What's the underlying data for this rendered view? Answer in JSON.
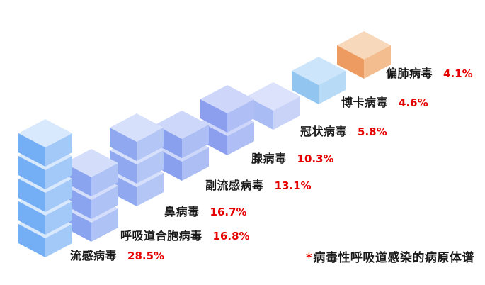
{
  "background": "#ffffff",
  "chart_data": {
    "type": "bar",
    "variant": "isometric-stacked-cubes",
    "title": "",
    "xlabel": "",
    "ylabel": "",
    "axes": "none",
    "legend": "none",
    "categories": [
      "流感病毒",
      "呼吸道合胞病毒",
      "鼻病毒",
      "副流感病毒",
      "腺病毒",
      "冠状病毒",
      "博卡病毒",
      "偏肺病毒"
    ],
    "values": [
      28.5,
      16.8,
      16.7,
      13.1,
      10.3,
      5.8,
      4.6,
      4.1
    ],
    "value_labels": [
      "28.5%",
      "16.8%",
      "16.7%",
      "13.1%",
      "10.3%",
      "5.8%",
      "4.6%",
      "4.1%"
    ],
    "cube_counts": [
      5,
      3,
      3,
      2,
      2,
      1,
      1,
      1
    ],
    "name_color": "#1a1a1a",
    "value_color": "#e60000",
    "stack_colors": [
      {
        "left": "#74aef5",
        "right": "#a3c9f9",
        "top": "#d8e9fd"
      },
      {
        "left": "#8ba4ef",
        "right": "#afc2f5",
        "top": "#d4ddfa"
      },
      {
        "left": "#90a8f0",
        "right": "#b4c6f6",
        "top": "#d7e0fb"
      },
      {
        "left": "#89a0ee",
        "right": "#acbef4",
        "top": "#cdd7f9"
      },
      {
        "left": "#8c9fef",
        "right": "#afbff5",
        "top": "#ced6f9"
      },
      {
        "left": "#a9bcf3",
        "right": "#c9d3f7",
        "top": "#dce2fb"
      },
      {
        "left": "#92c5f0",
        "right": "#b7daf7",
        "top": "#cde5fa"
      },
      {
        "left": "#ee9b62",
        "right": "#f3bd90",
        "top": "#f8d8bb"
      }
    ],
    "footnote": {
      "marker": "*",
      "marker_color": "#e60000",
      "text": "病毒性呼吸道感染的病原体谱"
    }
  }
}
